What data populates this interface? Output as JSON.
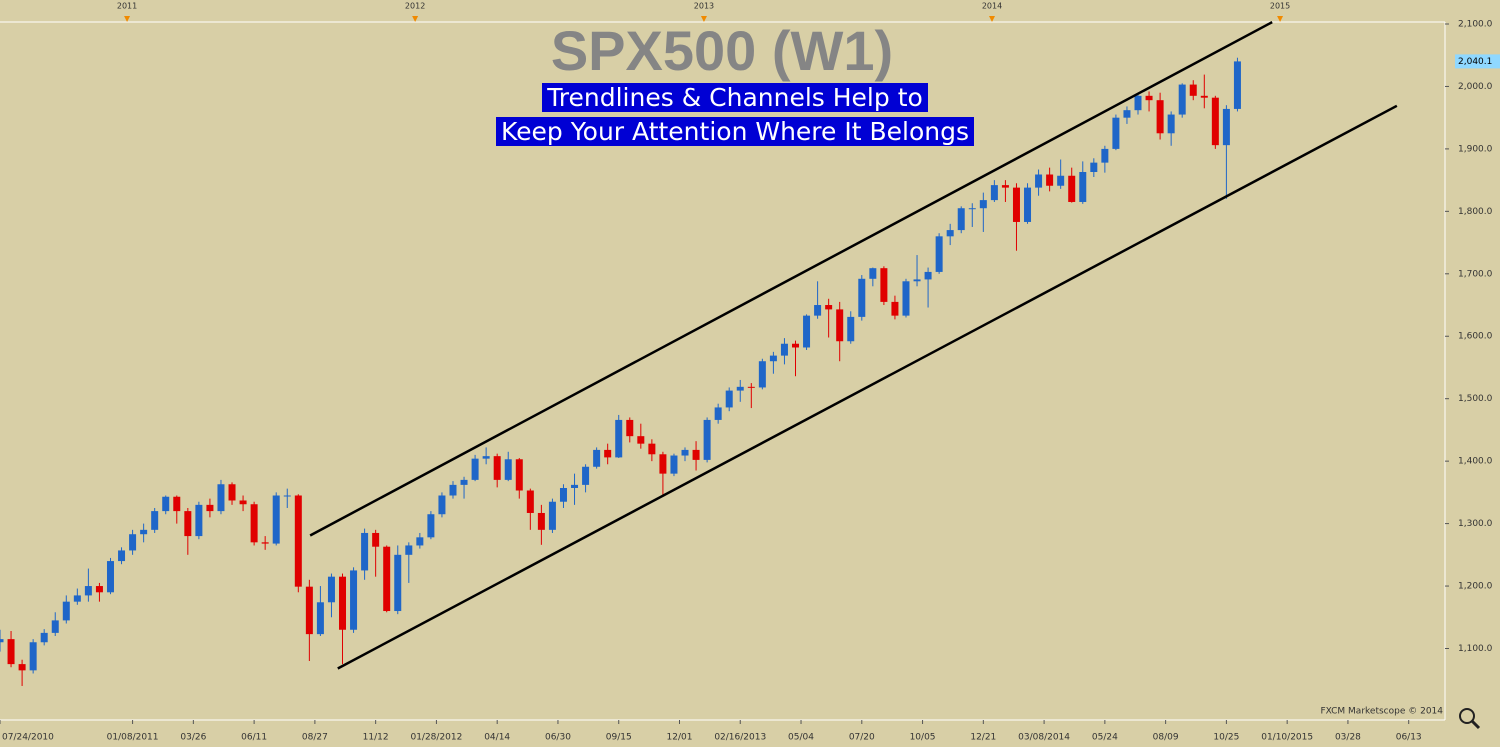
{
  "chart_data": {
    "type": "candlestick",
    "title": "SPX500 (W1)",
    "subtitle": [
      "Trendlines & Channels Help to",
      "Keep Your Attention Where It Belongs"
    ],
    "watermark": "FXCM Marketscope © 2014",
    "up_color": "#1f66c8",
    "down_color": "#e00000",
    "xlim": [
      "2010-07-24",
      "2015-07-29"
    ],
    "ylim": [
      985.5,
      2103.2
    ],
    "yticks": [
      {
        "value": 1100,
        "label": "1,100.0"
      },
      {
        "value": 1200,
        "label": "1,200.0"
      },
      {
        "value": 1300,
        "label": "1,300.0"
      },
      {
        "value": 1400,
        "label": "1,400.0"
      },
      {
        "value": 1500,
        "label": "1,500.0"
      },
      {
        "value": 1600,
        "label": "1,600.0"
      },
      {
        "value": 1700,
        "label": "1,700.0"
      },
      {
        "value": 1800,
        "label": "1,800.0"
      },
      {
        "value": 1900,
        "label": "1,900.0"
      },
      {
        "value": 2000,
        "label": "2,000.0"
      },
      {
        "value": 2100,
        "label": "2,100.0"
      }
    ],
    "xticks": [
      {
        "value": "2010-07-24",
        "label": "07/24/2010"
      },
      {
        "value": "2011-01-08",
        "label": "01/08/2011"
      },
      {
        "value": "2011-03-26",
        "label": "03/26"
      },
      {
        "value": "2011-06-11",
        "label": "06/11"
      },
      {
        "value": "2011-08-27",
        "label": "08/27"
      },
      {
        "value": "2011-11-12",
        "label": "11/12"
      },
      {
        "value": "2012-01-28",
        "label": "01/28/2012"
      },
      {
        "value": "2012-04-14",
        "label": "04/14"
      },
      {
        "value": "2012-06-30",
        "label": "06/30"
      },
      {
        "value": "2012-09-15",
        "label": "09/15"
      },
      {
        "value": "2012-12-01",
        "label": "12/01"
      },
      {
        "value": "2013-02-16",
        "label": "02/16/2013"
      },
      {
        "value": "2013-05-04",
        "label": "05/04"
      },
      {
        "value": "2013-07-20",
        "label": "07/20"
      },
      {
        "value": "2013-10-05",
        "label": "10/05"
      },
      {
        "value": "2013-12-21",
        "label": "12/21"
      },
      {
        "value": "2014-03-08",
        "label": "03/08/2014"
      },
      {
        "value": "2014-05-24",
        "label": "05/24"
      },
      {
        "value": "2014-08-09",
        "label": "08/09"
      },
      {
        "value": "2014-10-25",
        "label": "10/25"
      },
      {
        "value": "2015-01-10",
        "label": "01/10/2015"
      },
      {
        "value": "2015-03-28",
        "label": "03/28"
      },
      {
        "value": "2015-06-13",
        "label": "06/13"
      }
    ],
    "year_ticks": [
      {
        "value": "2011-01-01",
        "label": "2011"
      },
      {
        "value": "2012-01-01",
        "label": "2012"
      },
      {
        "value": "2013-01-01",
        "label": "2013"
      },
      {
        "value": "2014-01-01",
        "label": "2014"
      },
      {
        "value": "2015-01-01",
        "label": "2015"
      }
    ],
    "current_price_label": "2,040.1",
    "x": [
      "2010-07-24",
      "2010-08-07",
      "2010-08-21",
      "2010-09-04",
      "2010-09-18",
      "2010-10-02",
      "2010-10-16",
      "2010-10-30",
      "2010-11-13",
      "2010-11-27",
      "2010-12-11",
      "2010-12-25",
      "2011-01-08",
      "2011-01-22",
      "2011-02-05",
      "2011-02-19",
      "2011-03-05",
      "2011-03-19",
      "2011-04-02",
      "2011-04-16",
      "2011-04-30",
      "2011-05-14",
      "2011-05-28",
      "2011-06-11",
      "2011-06-25",
      "2011-07-09",
      "2011-07-23",
      "2011-08-06",
      "2011-08-20",
      "2011-09-03",
      "2011-09-17",
      "2011-10-01",
      "2011-10-15",
      "2011-10-29",
      "2011-11-12",
      "2011-11-26",
      "2011-12-10",
      "2011-12-24",
      "2012-01-07",
      "2012-01-21",
      "2012-02-04",
      "2012-02-18",
      "2012-03-03",
      "2012-03-17",
      "2012-03-31",
      "2012-04-14",
      "2012-04-28",
      "2012-05-12",
      "2012-05-26",
      "2012-06-09",
      "2012-06-23",
      "2012-07-07",
      "2012-07-21",
      "2012-08-04",
      "2012-08-18",
      "2012-09-01",
      "2012-09-15",
      "2012-09-29",
      "2012-10-13",
      "2012-10-27",
      "2012-11-10",
      "2012-11-24",
      "2012-12-08",
      "2012-12-22",
      "2013-01-05",
      "2013-01-19",
      "2013-02-02",
      "2013-02-16",
      "2013-03-02",
      "2013-03-16",
      "2013-03-30",
      "2013-04-13",
      "2013-04-27",
      "2013-05-11",
      "2013-05-25",
      "2013-06-08",
      "2013-06-22",
      "2013-07-06",
      "2013-07-20",
      "2013-08-03",
      "2013-08-17",
      "2013-08-31",
      "2013-09-14",
      "2013-09-28",
      "2013-10-12",
      "2013-10-26",
      "2013-11-09",
      "2013-11-23",
      "2013-12-07",
      "2013-12-21",
      "2014-01-04",
      "2014-01-18",
      "2014-02-01",
      "2014-02-15",
      "2014-03-01",
      "2014-03-15",
      "2014-03-29",
      "2014-04-12",
      "2014-04-26",
      "2014-05-10",
      "2014-05-24",
      "2014-06-07",
      "2014-06-21",
      "2014-07-05",
      "2014-07-19",
      "2014-08-02",
      "2014-08-16",
      "2014-08-30",
      "2014-09-13",
      "2014-09-27",
      "2014-10-11",
      "2014-10-25",
      "2014-11-08"
    ],
    "open": [
      1110,
      1115,
      1075,
      1065,
      1110,
      1125,
      1145,
      1175,
      1185,
      1200,
      1190,
      1240,
      1257,
      1283,
      1290,
      1320,
      1343,
      1320,
      1280,
      1330,
      1320,
      1363,
      1337,
      1331,
      1270,
      1268,
      1345,
      1345,
      1199,
      1123,
      1174,
      1215,
      1130,
      1225,
      1285,
      1263,
      1160,
      1250,
      1265,
      1278,
      1315,
      1345,
      1362,
      1370,
      1404,
      1408,
      1370,
      1403,
      1353,
      1317,
      1290,
      1335,
      1357,
      1362,
      1391,
      1418,
      1406,
      1466,
      1440,
      1428,
      1411,
      1380,
      1409,
      1418,
      1402,
      1466,
      1486,
      1513,
      1519,
      1518,
      1560,
      1569,
      1588,
      1582,
      1633,
      1650,
      1643,
      1592,
      1631,
      1692,
      1709,
      1655,
      1633,
      1688,
      1691,
      1703,
      1760,
      1770,
      1805,
      1805,
      1818,
      1842,
      1838,
      1783,
      1838,
      1859,
      1841,
      1857,
      1815,
      1863,
      1878,
      1900,
      1950,
      1962,
      1985,
      1978,
      1925,
      1955,
      2003,
      1985,
      1982,
      1906,
      1964
    ],
    "high": [
      1130,
      1128,
      1082,
      1115,
      1131,
      1158,
      1185,
      1196,
      1228,
      1205,
      1245,
      1262,
      1290,
      1300,
      1325,
      1345,
      1345,
      1325,
      1335,
      1340,
      1370,
      1366,
      1345,
      1335,
      1280,
      1350,
      1356,
      1347,
      1210,
      1200,
      1220,
      1220,
      1230,
      1292,
      1290,
      1265,
      1265,
      1270,
      1285,
      1320,
      1350,
      1368,
      1375,
      1410,
      1422,
      1412,
      1415,
      1405,
      1356,
      1330,
      1340,
      1363,
      1380,
      1395,
      1422,
      1428,
      1474,
      1470,
      1460,
      1435,
      1415,
      1412,
      1422,
      1432,
      1470,
      1492,
      1518,
      1530,
      1525,
      1564,
      1575,
      1597,
      1593,
      1635,
      1688,
      1660,
      1655,
      1640,
      1698,
      1710,
      1712,
      1665,
      1692,
      1730,
      1710,
      1765,
      1780,
      1808,
      1813,
      1830,
      1850,
      1850,
      1845,
      1845,
      1867,
      1870,
      1883,
      1870,
      1880,
      1885,
      1905,
      1955,
      1968,
      1988,
      1992,
      1990,
      1960,
      2005,
      2010,
      2019,
      1985,
      1970,
      2046
    ],
    "low": [
      1095,
      1070,
      1040,
      1060,
      1105,
      1120,
      1140,
      1170,
      1175,
      1175,
      1187,
      1235,
      1250,
      1270,
      1285,
      1315,
      1300,
      1250,
      1275,
      1310,
      1315,
      1330,
      1320,
      1265,
      1258,
      1265,
      1325,
      1190,
      1080,
      1120,
      1150,
      1075,
      1125,
      1210,
      1215,
      1158,
      1155,
      1205,
      1260,
      1275,
      1310,
      1340,
      1340,
      1368,
      1395,
      1358,
      1368,
      1340,
      1290,
      1266,
      1285,
      1325,
      1330,
      1350,
      1388,
      1395,
      1405,
      1430,
      1420,
      1400,
      1343,
      1376,
      1400,
      1385,
      1398,
      1460,
      1480,
      1495,
      1485,
      1515,
      1540,
      1555,
      1536,
      1578,
      1628,
      1598,
      1560,
      1588,
      1625,
      1680,
      1650,
      1627,
      1630,
      1680,
      1646,
      1700,
      1746,
      1765,
      1775,
      1767,
      1815,
      1815,
      1737,
      1780,
      1825,
      1832,
      1836,
      1814,
      1812,
      1855,
      1862,
      1898,
      1940,
      1955,
      1960,
      1915,
      1905,
      1950,
      1978,
      1965,
      1900,
      1820,
      1960
    ],
    "close": [
      1115,
      1075,
      1065,
      1110,
      1125,
      1145,
      1175,
      1185,
      1200,
      1190,
      1240,
      1257,
      1283,
      1290,
      1320,
      1343,
      1320,
      1280,
      1330,
      1320,
      1363,
      1337,
      1331,
      1270,
      1268,
      1345,
      1345,
      1199,
      1123,
      1174,
      1215,
      1130,
      1225,
      1285,
      1263,
      1160,
      1250,
      1265,
      1278,
      1315,
      1345,
      1362,
      1370,
      1404,
      1408,
      1370,
      1403,
      1353,
      1317,
      1290,
      1335,
      1357,
      1362,
      1391,
      1418,
      1406,
      1466,
      1440,
      1428,
      1411,
      1380,
      1409,
      1418,
      1402,
      1466,
      1486,
      1513,
      1519,
      1518,
      1560,
      1569,
      1588,
      1582,
      1633,
      1650,
      1643,
      1592,
      1631,
      1692,
      1709,
      1655,
      1633,
      1688,
      1691,
      1703,
      1760,
      1770,
      1805,
      1805,
      1818,
      1842,
      1838,
      1783,
      1838,
      1859,
      1841,
      1857,
      1815,
      1863,
      1878,
      1900,
      1950,
      1962,
      1985,
      1978,
      1925,
      1955,
      2003,
      1985,
      1982,
      1906,
      1964,
      2040.1
    ],
    "trendlines": [
      {
        "color": "#000000",
        "x": [
          "2011-08-21",
          "2014-12-22"
        ],
        "y": [
          1281,
          2103
        ]
      },
      {
        "color": "#000000",
        "x": [
          "2011-09-25",
          "2015-05-29"
        ],
        "y": [
          1068,
          1969
        ]
      }
    ]
  }
}
